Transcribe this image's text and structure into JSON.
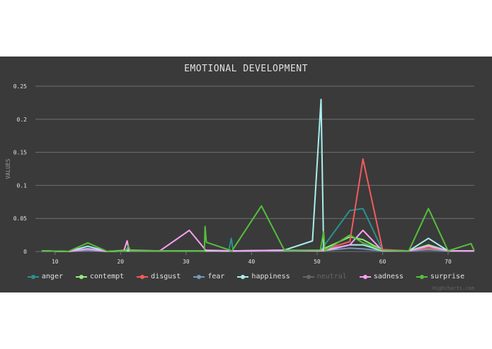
{
  "chart_data": {
    "type": "line",
    "title": "EMOTIONAL DEVELOPMENT",
    "xlabel": "",
    "ylabel": "VALUES",
    "xlim": [
      7,
      74
    ],
    "ylim": [
      0,
      0.25
    ],
    "x_ticks": [
      "10",
      "20",
      "30",
      "40",
      "50",
      "60",
      "70"
    ],
    "y_ticks": [
      "0",
      "0.05",
      "0.1",
      "0.15",
      "0.2",
      "0.25"
    ],
    "grid": true,
    "legend_position": "bottom",
    "series": [
      {
        "name": "anger",
        "color": "#2b908f",
        "visible": true,
        "points": [
          [
            8,
            0.001
          ],
          [
            12,
            0
          ],
          [
            15,
            0.005
          ],
          [
            18,
            0
          ],
          [
            21,
            0.001
          ],
          [
            26,
            0.001
          ],
          [
            30,
            0.001
          ],
          [
            33,
            0.001
          ],
          [
            36.5,
            0
          ],
          [
            36.9,
            0.02
          ],
          [
            37.2,
            0
          ],
          [
            45,
            0.001
          ],
          [
            50.5,
            0.001
          ],
          [
            55,
            0.062
          ],
          [
            57,
            0.065
          ],
          [
            60,
            0.002
          ],
          [
            64,
            0.001
          ],
          [
            67,
            0.01
          ],
          [
            70,
            0.001
          ],
          [
            74,
            0.001
          ]
        ]
      },
      {
        "name": "contempt",
        "color": "#90ee7e",
        "visible": true,
        "points": [
          [
            8,
            0.001
          ],
          [
            12,
            0
          ],
          [
            15,
            0.004
          ],
          [
            18,
            0
          ],
          [
            21,
            0.002
          ],
          [
            26,
            0.001
          ],
          [
            30,
            0.001
          ],
          [
            33,
            0.001
          ],
          [
            37,
            0.001
          ],
          [
            45,
            0.001
          ],
          [
            50.5,
            0.002
          ],
          [
            55,
            0.022
          ],
          [
            57,
            0.018
          ],
          [
            60,
            0.002
          ],
          [
            64,
            0.001
          ],
          [
            67,
            0.01
          ],
          [
            70,
            0.001
          ],
          [
            74,
            0.001
          ]
        ]
      },
      {
        "name": "disgust",
        "color": "#f45b5b",
        "visible": true,
        "points": [
          [
            8,
            0.001
          ],
          [
            12,
            0
          ],
          [
            15,
            0.002
          ],
          [
            18,
            0
          ],
          [
            21,
            0.001
          ],
          [
            26,
            0.001
          ],
          [
            30,
            0.001
          ],
          [
            33,
            0.001
          ],
          [
            37,
            0.001
          ],
          [
            45,
            0.001
          ],
          [
            50.5,
            0.001
          ],
          [
            55,
            0.015
          ],
          [
            57,
            0.14
          ],
          [
            60,
            0.003
          ],
          [
            64,
            0.001
          ],
          [
            67,
            0.005
          ],
          [
            70,
            0.001
          ],
          [
            74,
            0.001
          ]
        ]
      },
      {
        "name": "fear",
        "color": "#7798bf",
        "visible": true,
        "points": [
          [
            8,
            0.001
          ],
          [
            12,
            0
          ],
          [
            15,
            0.002
          ],
          [
            18,
            0
          ],
          [
            21,
            0.001
          ],
          [
            26,
            0.001
          ],
          [
            30,
            0.001
          ],
          [
            33,
            0.001
          ],
          [
            37,
            0.001
          ],
          [
            45,
            0.001
          ],
          [
            50.5,
            0.001
          ],
          [
            55,
            0.005
          ],
          [
            57,
            0.004
          ],
          [
            60,
            0.001
          ],
          [
            64,
            0.001
          ],
          [
            67,
            0.003
          ],
          [
            70,
            0.001
          ],
          [
            74,
            0.001
          ]
        ]
      },
      {
        "name": "happiness",
        "color": "#aaeeee",
        "visible": true,
        "points": [
          [
            8,
            0.001
          ],
          [
            12,
            0
          ],
          [
            15,
            0.008
          ],
          [
            18,
            0
          ],
          [
            21,
            0.001
          ],
          [
            26,
            0.001
          ],
          [
            30,
            0.001
          ],
          [
            33,
            0.001
          ],
          [
            37,
            0.001
          ],
          [
            45,
            0.002
          ],
          [
            49.3,
            0.016
          ],
          [
            50.6,
            0.23
          ],
          [
            51,
            0.001
          ],
          [
            55,
            0.01
          ],
          [
            57,
            0.01
          ],
          [
            60,
            0.001
          ],
          [
            64,
            0.001
          ],
          [
            67,
            0.02
          ],
          [
            70,
            0.001
          ],
          [
            74,
            0.001
          ]
        ]
      },
      {
        "name": "neutral",
        "color": "#666666",
        "visible": false,
        "points": []
      },
      {
        "name": "sadness",
        "color": "#ff9ff3",
        "visible": true,
        "points": [
          [
            8,
            0.001
          ],
          [
            12,
            0
          ],
          [
            15,
            0.004
          ],
          [
            18,
            0
          ],
          [
            20.5,
            0.001
          ],
          [
            21,
            0.016
          ],
          [
            21.3,
            0.001
          ],
          [
            26,
            0.001
          ],
          [
            30.5,
            0.032
          ],
          [
            33,
            0.002
          ],
          [
            37,
            0.001
          ],
          [
            45,
            0.002
          ],
          [
            50.5,
            0.001
          ],
          [
            55,
            0.01
          ],
          [
            57,
            0.032
          ],
          [
            60,
            0.001
          ],
          [
            64,
            0.001
          ],
          [
            67,
            0.008
          ],
          [
            70,
            0.001
          ],
          [
            74,
            0.001
          ]
        ]
      },
      {
        "name": "surprise",
        "color": "#55bf3b",
        "visible": true,
        "points": [
          [
            8,
            0.001
          ],
          [
            12,
            0
          ],
          [
            15,
            0.013
          ],
          [
            18,
            0
          ],
          [
            20.8,
            0.001
          ],
          [
            21.2,
            0.008
          ],
          [
            21.5,
            0.001
          ],
          [
            26,
            0.001
          ],
          [
            32.8,
            0.001
          ],
          [
            32.9,
            0.038
          ],
          [
            33.1,
            0.014
          ],
          [
            37,
            0.001
          ],
          [
            41.5,
            0.069
          ],
          [
            45,
            0.002
          ],
          [
            50.5,
            0.002
          ],
          [
            51,
            0.03
          ],
          [
            51.2,
            0.001
          ],
          [
            55,
            0.025
          ],
          [
            57,
            0.013
          ],
          [
            60,
            0.002
          ],
          [
            64,
            0.001
          ],
          [
            67,
            0.065
          ],
          [
            70,
            0.001
          ],
          [
            73.5,
            0.012
          ],
          [
            74,
            0.001
          ]
        ]
      }
    ]
  },
  "credits": "Highcharts.com"
}
